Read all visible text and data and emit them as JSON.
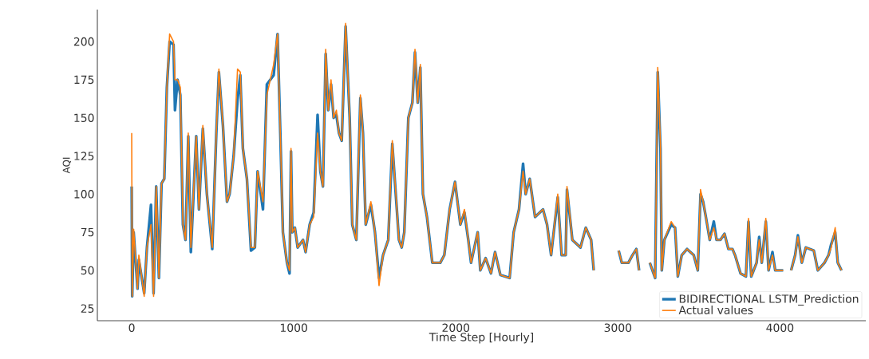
{
  "chart_data": {
    "type": "line",
    "xlabel": "Time Step [Hourly]",
    "ylabel": "AQI",
    "xlim": [
      -212,
      4530
    ],
    "ylim": [
      17,
      221
    ],
    "xticks": [
      0,
      1000,
      2000,
      3000,
      4000
    ],
    "yticks": [
      25,
      50,
      75,
      100,
      125,
      150,
      175,
      200
    ],
    "legend": "bottom right",
    "x": [
      0,
      3,
      12,
      36,
      44,
      77,
      94,
      119,
      135,
      151,
      168,
      184,
      201,
      217,
      234,
      258,
      267,
      283,
      300,
      316,
      332,
      349,
      365,
      398,
      415,
      439,
      464,
      497,
      522,
      538,
      563,
      588,
      604,
      629,
      653,
      670,
      686,
      711,
      736,
      760,
      777,
      810,
      834,
      876,
      900,
      917,
      933,
      958,
      974,
      983,
      991,
      1007,
      1024,
      1057,
      1073,
      1098,
      1123,
      1147,
      1164,
      1180,
      1197,
      1213,
      1230,
      1246,
      1263,
      1279,
      1296,
      1320,
      1345,
      1361,
      1386,
      1411,
      1427,
      1444,
      1476,
      1501,
      1526,
      1551,
      1583,
      1608,
      1649,
      1666,
      1682,
      1707,
      1732,
      1748,
      1765,
      1781,
      1797,
      1822,
      1855,
      1904,
      1929,
      1962,
      1995,
      2028,
      2053,
      2077,
      2094,
      2135,
      2151,
      2184,
      2217,
      2242,
      2275,
      2332,
      2357,
      2390,
      2415,
      2431,
      2456,
      2489,
      2538,
      2563,
      2588,
      2629,
      2653,
      2678,
      2686,
      2719,
      2769,
      2802,
      2835,
      2851,
      2900,
      3005,
      3024,
      3065,
      3090,
      3114,
      3131,
      3180,
      3197,
      3230,
      3246,
      3263,
      3271,
      3287,
      3329,
      3353,
      3370,
      3394,
      3427,
      3468,
      3493,
      3510,
      3526,
      3543,
      3567,
      3592,
      3609,
      3633,
      3658,
      3682,
      3707,
      3723,
      3757,
      3790,
      3806,
      3823,
      3856,
      3872,
      3888,
      3913,
      3930,
      3954,
      3971,
      4020,
      4045,
      4069,
      4094,
      4111,
      4135,
      4160,
      4209,
      4234,
      4275,
      4300,
      4316,
      4341,
      4357,
      4380
    ],
    "series": [
      {
        "name": "BIDIRECTIONAL LSTM_Prediction",
        "color": "#1f77b4",
        "values": [
          105,
          33,
          75,
          38,
          57,
          35,
          65,
          93,
          35,
          105,
          45,
          107,
          110,
          170,
          200,
          198,
          155,
          175,
          165,
          80,
          70,
          138,
          62,
          138,
          90,
          143,
          100,
          64,
          140,
          180,
          145,
          95,
          100,
          125,
          162,
          178,
          130,
          110,
          63,
          65,
          115,
          90,
          172,
          178,
          205,
          140,
          75,
          55,
          48,
          128,
          75,
          78,
          65,
          70,
          62,
          80,
          88,
          152,
          115,
          105,
          192,
          155,
          172,
          150,
          152,
          140,
          135,
          210,
          150,
          80,
          70,
          163,
          140,
          80,
          93,
          75,
          45,
          60,
          70,
          133,
          70,
          65,
          75,
          150,
          160,
          193,
          160,
          183,
          100,
          85,
          55,
          55,
          60,
          90,
          108,
          80,
          88,
          70,
          55,
          75,
          50,
          58,
          48,
          62,
          47,
          45,
          75,
          90,
          120,
          100,
          110,
          85,
          90,
          80,
          60,
          98,
          60,
          60,
          103,
          70,
          65,
          78,
          70,
          50,
          null,
          63,
          55,
          55,
          60,
          64,
          50,
          null,
          55,
          45,
          180,
          130,
          50,
          70,
          80,
          78,
          46,
          60,
          64,
          60,
          50,
          100,
          95,
          85,
          70,
          82,
          70,
          70,
          74,
          64,
          64,
          60,
          48,
          46,
          82,
          46,
          55,
          72,
          55,
          82,
          50,
          62,
          50,
          50,
          null,
          50,
          60,
          73,
          55,
          65,
          63,
          50,
          55,
          60,
          67,
          75,
          55,
          50
        ]
      },
      {
        "name": "Actual values",
        "color": "#ff7f0e",
        "values": [
          140,
          33,
          77,
          38,
          60,
          33,
          65,
          80,
          33,
          105,
          45,
          107,
          110,
          170,
          205,
          200,
          175,
          175,
          170,
          80,
          70,
          140,
          65,
          138,
          90,
          145,
          100,
          65,
          140,
          182,
          145,
          95,
          100,
          125,
          182,
          180,
          130,
          110,
          65,
          65,
          115,
          95,
          165,
          185,
          205,
          140,
          75,
          55,
          50,
          130,
          75,
          78,
          65,
          70,
          62,
          80,
          85,
          140,
          115,
          105,
          195,
          155,
          175,
          150,
          155,
          140,
          135,
          212,
          150,
          80,
          70,
          165,
          140,
          80,
          95,
          75,
          40,
          60,
          70,
          135,
          70,
          65,
          75,
          150,
          160,
          195,
          160,
          185,
          100,
          85,
          55,
          55,
          60,
          90,
          108,
          80,
          90,
          70,
          55,
          75,
          50,
          58,
          48,
          62,
          47,
          45,
          75,
          90,
          115,
          100,
          110,
          85,
          90,
          80,
          60,
          100,
          60,
          60,
          105,
          70,
          65,
          78,
          70,
          50,
          null,
          63,
          55,
          55,
          60,
          64,
          50,
          null,
          55,
          45,
          183,
          132,
          50,
          70,
          82,
          78,
          46,
          60,
          64,
          60,
          50,
          103,
          95,
          85,
          70,
          78,
          70,
          70,
          74,
          64,
          64,
          60,
          48,
          46,
          84,
          46,
          55,
          70,
          55,
          84,
          50,
          60,
          50,
          50,
          null,
          50,
          60,
          72,
          55,
          65,
          63,
          50,
          55,
          60,
          65,
          78,
          55,
          50
        ]
      }
    ]
  }
}
